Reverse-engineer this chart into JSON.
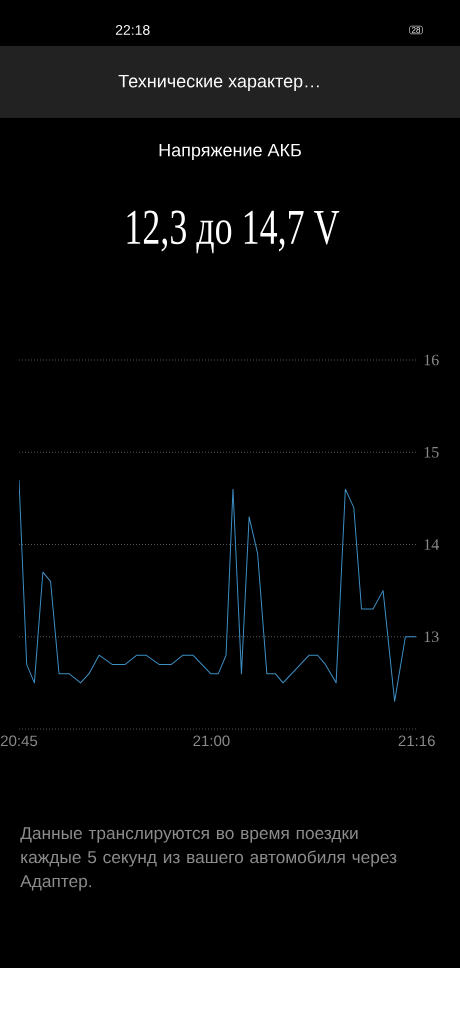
{
  "chart_data": {
    "type": "line",
    "title": "Напряжение АКБ",
    "subtitle": "12,3 до 14,7 V",
    "annotations": [
      "22:18",
      "28",
      "Технические характер…",
      "Данные транслируются во время поездки каждые 5 секунд из вашего автомобиля через Адаптер."
    ],
    "x": [
      20.75,
      20.76,
      20.77,
      20.781,
      20.791,
      20.802,
      20.815,
      20.83,
      20.841,
      20.854,
      20.871,
      20.888,
      20.903,
      20.915,
      20.932,
      20.948,
      20.963,
      20.976,
      20.999,
      21.009,
      21.019,
      21.028,
      21.039,
      21.049,
      21.06,
      21.072,
      21.083,
      21.093,
      21.127,
      21.138,
      21.148,
      21.162,
      21.174,
      21.185,
      21.195,
      21.21,
      21.223,
      21.238,
      21.252,
      21.2667
    ],
    "series": [
      {
        "color": "#3d8fc4",
        "values": [
          14.7,
          12.7,
          12.5,
          13.7,
          13.6,
          12.6,
          12.6,
          12.5,
          12.6,
          12.8,
          12.7,
          12.7,
          12.8,
          12.8,
          12.7,
          12.7,
          12.8,
          12.8,
          12.6,
          12.6,
          12.8,
          14.6,
          12.6,
          14.3,
          13.9,
          12.6,
          12.6,
          12.5,
          12.8,
          12.8,
          12.7,
          12.5,
          14.6,
          14.4,
          13.3,
          13.3,
          13.5,
          12.3,
          13.0,
          13.0
        ]
      }
    ],
    "xlim": [
      20.75,
      21.2667
    ],
    "xticks": [
      {
        "value": 20.75,
        "label": "20:45"
      },
      {
        "value": 21.0,
        "label": "21:00"
      },
      {
        "value": 21.2667,
        "label": "21:16"
      }
    ],
    "ylim": [
      12,
      16
    ],
    "yticks": [
      {
        "value": 12,
        "label": null
      },
      13,
      14,
      15,
      16
    ],
    "grid": "y",
    "marker": "none",
    "line_style": "solid"
  }
}
